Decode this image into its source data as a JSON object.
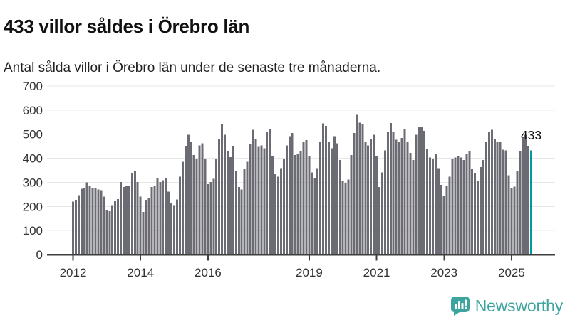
{
  "header": {
    "title": "433 villor såldes i Örebro län",
    "subtitle": "Antal sålda villor i Örebro län under de senaste tre månaderna."
  },
  "footer": {
    "brand": "Newsworthy"
  },
  "colors": {
    "bar": "#6b6b73",
    "highlight": "#009a9a",
    "axis": "#3f3f3f",
    "grid": "#e8e8e8",
    "label": "#333333",
    "annotation": "#111111",
    "brand": "#3ea49e"
  },
  "chart_data": {
    "type": "bar",
    "title": "433 villor såldes i Örebro län",
    "subtitle": "Antal sålda villor i Örebro län under de senaste tre månaderna.",
    "unit": "antal sålda villor, rullande tre månader",
    "frequency": "monthly",
    "x_start": "2012-01",
    "x_end": "2025-08",
    "ylim": [
      0,
      700
    ],
    "yticks": [
      0,
      100,
      200,
      300,
      400,
      500,
      600,
      700
    ],
    "xticks": [
      {
        "label": "2012",
        "month_index": 0
      },
      {
        "label": "2014",
        "month_index": 24
      },
      {
        "label": "2016",
        "month_index": 48
      },
      {
        "label": "2019",
        "month_index": 84
      },
      {
        "label": "2021",
        "month_index": 108
      },
      {
        "label": "2023",
        "month_index": 132
      },
      {
        "label": "2025",
        "month_index": 156
      }
    ],
    "grid": "horizontal",
    "legend": "none",
    "highlight_index": 163,
    "highlight_label": "433",
    "values": [
      220,
      228,
      247,
      273,
      277,
      300,
      285,
      278,
      277,
      270,
      268,
      240,
      185,
      180,
      205,
      225,
      230,
      302,
      280,
      285,
      285,
      340,
      347,
      302,
      240,
      177,
      228,
      237,
      280,
      285,
      316,
      302,
      309,
      316,
      262,
      213,
      206,
      229,
      324,
      386,
      452,
      498,
      467,
      413,
      398,
      454,
      462,
      398,
      293,
      302,
      314,
      398,
      479,
      541,
      497,
      428,
      405,
      452,
      349,
      280,
      270,
      354,
      386,
      459,
      518,
      482,
      447,
      454,
      442,
      508,
      523,
      408,
      334,
      324,
      359,
      398,
      454,
      492,
      505,
      413,
      420,
      428,
      467,
      475,
      410,
      341,
      319,
      359,
      470,
      545,
      535,
      469,
      442,
      492,
      462,
      393,
      305,
      298,
      311,
      413,
      505,
      580,
      548,
      541,
      467,
      454,
      482,
      497,
      408,
      280,
      341,
      433,
      511,
      546,
      511,
      477,
      467,
      484,
      521,
      470,
      423,
      393,
      497,
      528,
      531,
      514,
      437,
      403,
      398,
      416,
      359,
      290,
      245,
      285,
      324,
      398,
      403,
      410,
      403,
      393,
      418,
      430,
      354,
      339,
      305,
      364,
      393,
      467,
      511,
      518,
      479,
      468,
      466,
      435,
      432,
      329,
      275,
      282,
      349,
      428,
      491,
      498,
      450,
      433
    ]
  }
}
